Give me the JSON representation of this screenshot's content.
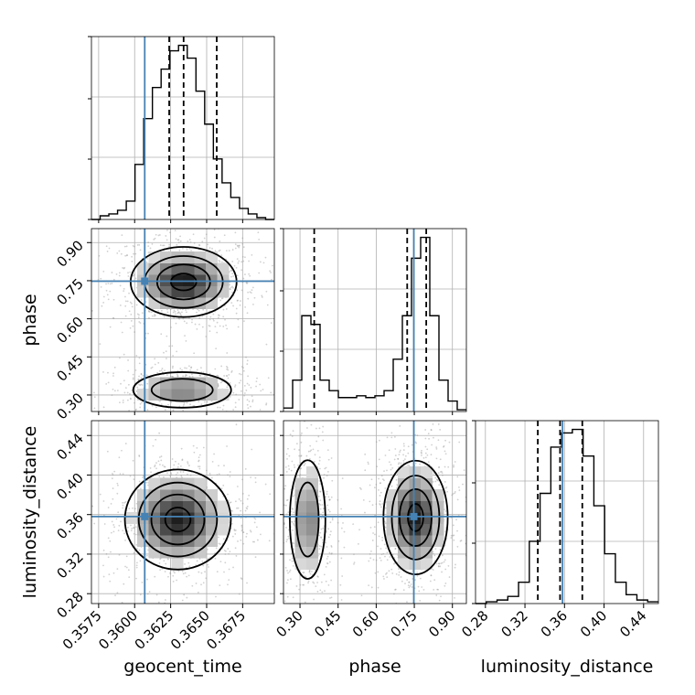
{
  "chart_data": {
    "type": "corner",
    "parameters": [
      "geocent_time",
      "phase",
      "luminosity_distance"
    ],
    "ranges": {
      "geocent_time": [
        0.357,
        0.3697
      ],
      "phase": [
        0.235,
        0.955
      ],
      "luminosity_distance": [
        0.27,
        0.455
      ]
    },
    "ticks": {
      "geocent_time": [
        "0.3575",
        "0.3600",
        "0.3625",
        "0.3650",
        "0.3675"
      ],
      "phase": [
        "0.30",
        "0.45",
        "0.60",
        "0.75",
        "0.90"
      ],
      "luminosity_distance": [
        "0.28",
        "0.32",
        "0.36",
        "0.40",
        "0.44"
      ]
    },
    "truths": {
      "geocent_time": 0.3607,
      "phase": 0.748,
      "luminosity_distance": 0.358
    },
    "color_truth": "#4682b4",
    "histograms": {
      "geocent_time": {
        "quantiles": [
          0.3624,
          0.3634,
          0.3657
        ],
        "bins": [
          0.357,
          0.3697
        ],
        "counts": [
          0,
          2,
          3,
          5,
          10,
          30,
          55,
          72,
          82,
          92,
          95,
          88,
          70,
          52,
          33,
          20,
          12,
          6,
          3,
          1,
          0
        ]
      },
      "phase": {
        "quantiles": [
          0.356,
          0.722,
          0.797
        ],
        "bins": [
          0.235,
          0.955
        ],
        "counts": [
          2,
          18,
          55,
          50,
          18,
          12,
          8,
          8,
          9,
          8,
          9,
          12,
          30,
          55,
          88,
          100,
          55,
          18,
          6,
          1
        ]
      },
      "luminosity_distance": {
        "quantiles": [
          0.333,
          0.3555,
          0.378
        ],
        "bins": [
          0.27,
          0.455
        ],
        "counts": [
          0,
          1,
          2,
          4,
          12,
          35,
          62,
          88,
          96,
          98,
          83,
          55,
          28,
          12,
          5,
          2,
          1
        ]
      }
    },
    "density_modes": {
      "geocent_time_vs_phase": [
        {
          "x": 0.3634,
          "y": 0.745,
          "sx": 0.0016,
          "sy": 0.06,
          "w": 1.0
        },
        {
          "x": 0.3633,
          "y": 0.32,
          "sx": 0.0017,
          "sy": 0.035,
          "w": 0.55
        }
      ],
      "geocent_time_vs_luminosity_distance": [
        {
          "x": 0.363,
          "y": 0.355,
          "sx": 0.0016,
          "sy": 0.022,
          "w": 1.0
        }
      ],
      "phase_vs_luminosity_distance": [
        {
          "x": 0.33,
          "y": 0.355,
          "sx": 0.035,
          "sy": 0.03,
          "w": 0.55
        },
        {
          "x": 0.755,
          "y": 0.357,
          "sx": 0.055,
          "sy": 0.025,
          "w": 1.0
        }
      ]
    }
  }
}
